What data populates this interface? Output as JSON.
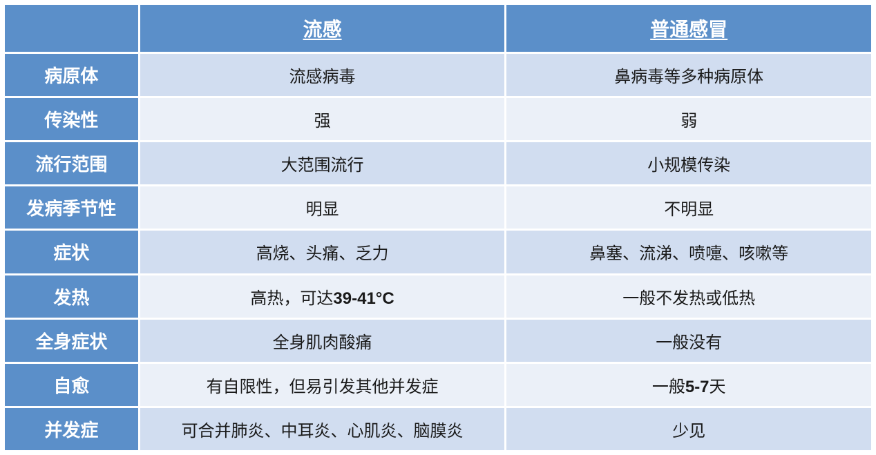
{
  "table": {
    "type": "table",
    "header_bg": "#5b8fc9",
    "header_fg": "#ffffff",
    "row_even_bg": "#d1ddf0",
    "row_odd_bg": "#ebf0f8",
    "text_color": "#1a1a1a",
    "header_fontsize": 28,
    "label_fontsize": 26,
    "cell_fontsize": 24,
    "columns": {
      "flu": "流感",
      "cold": "普通感冒"
    },
    "rows": [
      {
        "label": "病原体",
        "flu": "流感病毒",
        "cold": "鼻病毒等多种病原体"
      },
      {
        "label": "传染性",
        "flu": "强",
        "cold": "弱"
      },
      {
        "label": "流行范围",
        "flu": "大范围流行",
        "cold": "小规模传染"
      },
      {
        "label": "发病季节性",
        "flu": "明显",
        "cold": "不明显"
      },
      {
        "label": "症状",
        "flu": "高烧、头痛、乏力",
        "cold": "鼻塞、流涕、喷嚏、咳嗽等"
      },
      {
        "label": "发热",
        "flu_pre": "高热，可达",
        "flu_bold": "39-41°C",
        "cold": "一般不发热或低热"
      },
      {
        "label": "全身症状",
        "flu": "全身肌肉酸痛",
        "cold": "一般没有"
      },
      {
        "label": "自愈",
        "flu": "有自限性，但易引发其他并发症",
        "cold_pre": "一般",
        "cold_bold": "5-7",
        "cold_post": "天"
      },
      {
        "label": "并发症",
        "flu": "可合并肺炎、中耳炎、心肌炎、脑膜炎",
        "cold": "少见"
      }
    ]
  }
}
